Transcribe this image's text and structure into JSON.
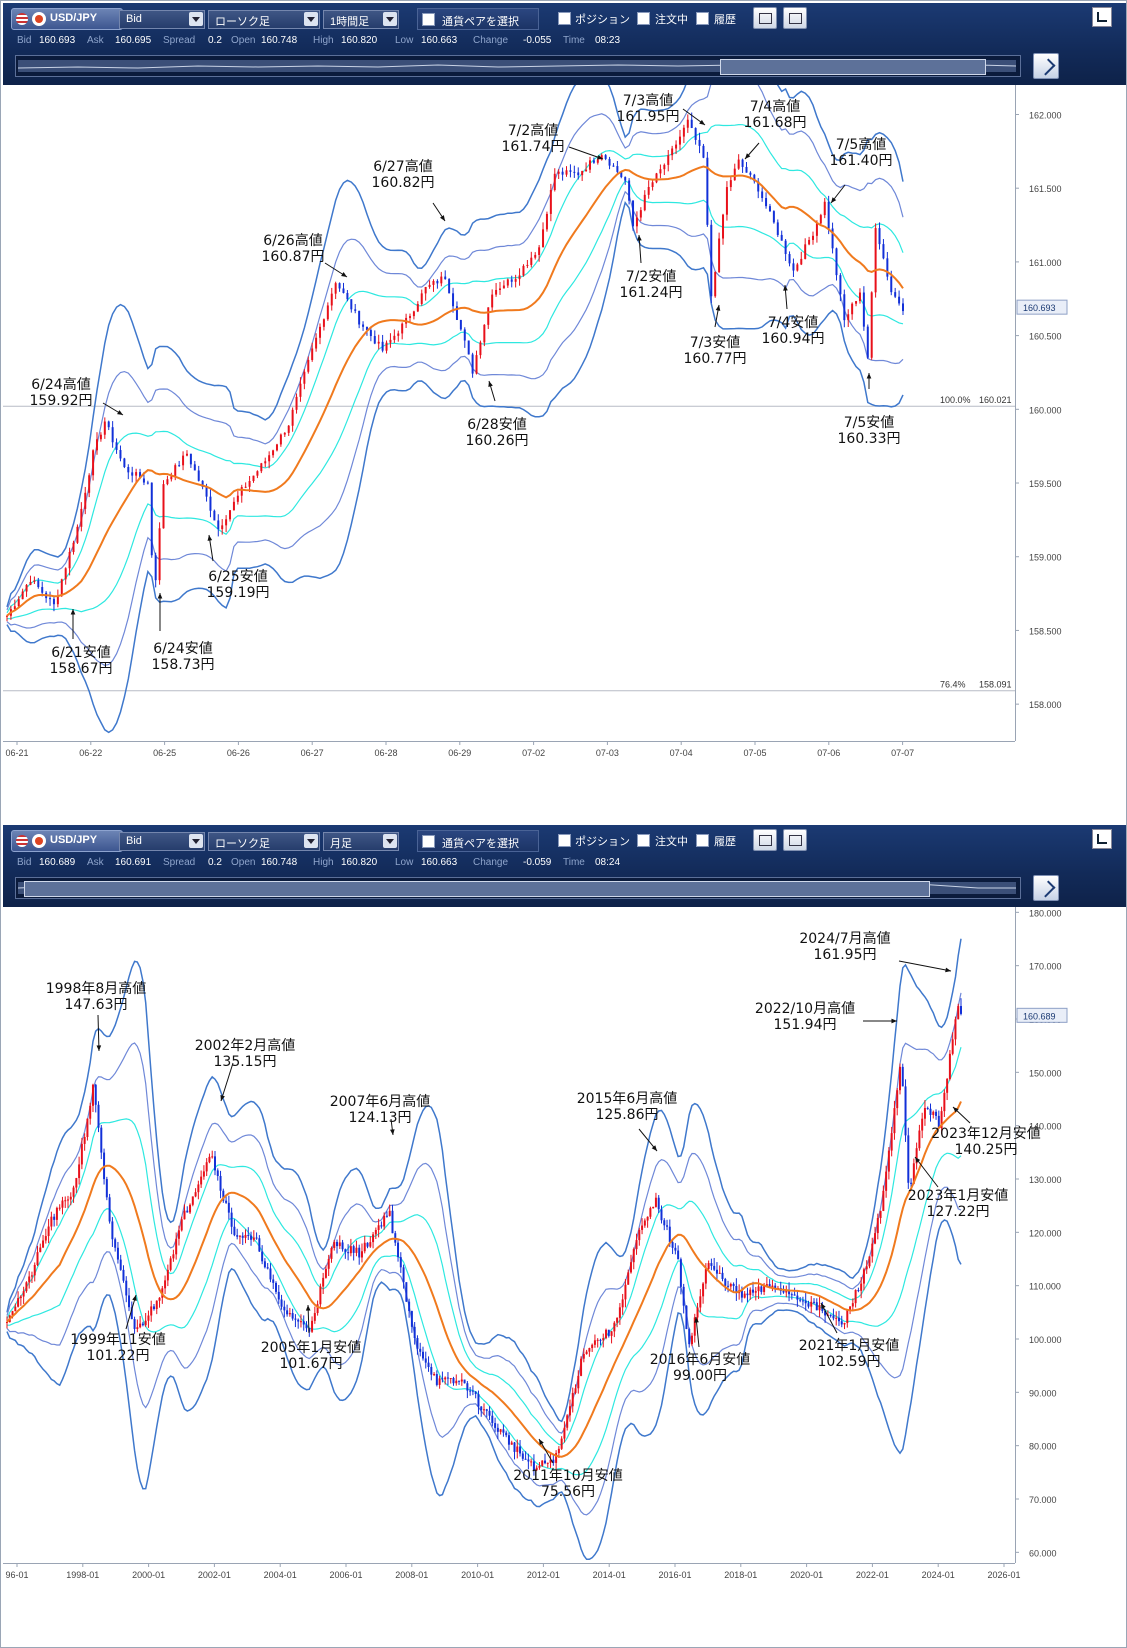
{
  "colors": {
    "up": "#e8101a",
    "down": "#1230d8",
    "ma": "#f07a1e",
    "band1": "#2ee8e0",
    "band2": "#6f88d8",
    "band3": "#3f78cc"
  },
  "panels": [
    {
      "toolbar": {
        "pair": "USD/JPY",
        "price_type": "Bid",
        "chart_type": "ローソク足",
        "timeframe": "1時間足",
        "pair_select": "通貨ペアを選択",
        "position": "ポジション",
        "orders": "注文中",
        "history": "履歴"
      },
      "quote": {
        "bid_label": "Bid",
        "bid": "160.693",
        "ask_label": "Ask",
        "ask": "160.695",
        "spread_label": "Spread",
        "spread": "0.2",
        "open_label": "Open",
        "open": "160.748",
        "high_label": "High",
        "high": "160.820",
        "low_label": "Low",
        "low": "160.663",
        "change_label": "Change",
        "change": "-0.055",
        "time_label": "Time",
        "time": "08:23"
      },
      "chart_data": {
        "type": "candlestick",
        "y_ticks": [
          "162.000",
          "161.500",
          "161.000",
          "160.500",
          "160.000",
          "159.500",
          "159.000",
          "158.500",
          "158.000"
        ],
        "ylim": [
          157.75,
          162.2
        ],
        "x_ticks": [
          "06-21",
          "06-22",
          "06-25",
          "06-26",
          "06-27",
          "06-28",
          "06-29",
          "07-02",
          "07-03",
          "07-04",
          "07-05",
          "07-06",
          "07-07"
        ],
        "current_price": "160.693",
        "fib_lines": [
          {
            "label": "100.0%",
            "value": "160.021"
          },
          {
            "label": "76.4%",
            "value": "158.091"
          }
        ],
        "series": [
          {
            "x": 0,
            "y": 158.6
          },
          {
            "x": 0.3,
            "y": 158.85
          },
          {
            "x": 0.6,
            "y": 158.67
          },
          {
            "x": 0.9,
            "y": 159.2
          },
          {
            "x": 1.1,
            "y": 159.7
          },
          {
            "x": 1.25,
            "y": 159.92
          },
          {
            "x": 1.5,
            "y": 159.6
          },
          {
            "x": 1.8,
            "y": 159.5
          },
          {
            "x": 1.88,
            "y": 158.73
          },
          {
            "x": 2.0,
            "y": 159.5
          },
          {
            "x": 2.3,
            "y": 159.7
          },
          {
            "x": 2.55,
            "y": 159.4
          },
          {
            "x": 2.7,
            "y": 159.19
          },
          {
            "x": 3.0,
            "y": 159.45
          },
          {
            "x": 3.3,
            "y": 159.65
          },
          {
            "x": 3.6,
            "y": 159.9
          },
          {
            "x": 3.9,
            "y": 160.4
          },
          {
            "x": 4.2,
            "y": 160.87
          },
          {
            "x": 4.5,
            "y": 160.6
          },
          {
            "x": 4.8,
            "y": 160.4
          },
          {
            "x": 5.1,
            "y": 160.6
          },
          {
            "x": 5.35,
            "y": 160.82
          },
          {
            "x": 5.6,
            "y": 160.9
          },
          {
            "x": 5.85,
            "y": 160.45
          },
          {
            "x": 5.95,
            "y": 160.26
          },
          {
            "x": 6.2,
            "y": 160.8
          },
          {
            "x": 6.5,
            "y": 160.9
          },
          {
            "x": 6.8,
            "y": 161.1
          },
          {
            "x": 7.0,
            "y": 161.6
          },
          {
            "x": 7.3,
            "y": 161.6
          },
          {
            "x": 7.6,
            "y": 161.74
          },
          {
            "x": 7.9,
            "y": 161.55
          },
          {
            "x": 8.0,
            "y": 161.24
          },
          {
            "x": 8.2,
            "y": 161.5
          },
          {
            "x": 8.45,
            "y": 161.7
          },
          {
            "x": 8.7,
            "y": 161.95
          },
          {
            "x": 8.9,
            "y": 161.7
          },
          {
            "x": 9.0,
            "y": 160.77
          },
          {
            "x": 9.2,
            "y": 161.5
          },
          {
            "x": 9.35,
            "y": 161.68
          },
          {
            "x": 9.6,
            "y": 161.5
          },
          {
            "x": 9.85,
            "y": 161.2
          },
          {
            "x": 10.05,
            "y": 160.94
          },
          {
            "x": 10.3,
            "y": 161.2
          },
          {
            "x": 10.45,
            "y": 161.4
          },
          {
            "x": 10.7,
            "y": 160.6
          },
          {
            "x": 10.9,
            "y": 160.8
          },
          {
            "x": 11.0,
            "y": 160.33
          },
          {
            "x": 11.1,
            "y": 161.25
          },
          {
            "x": 11.3,
            "y": 160.8
          },
          {
            "x": 11.45,
            "y": 160.69
          }
        ],
        "annotations": [
          {
            "line1": "6/24高値",
            "line2": "159.92円"
          },
          {
            "line1": "6/26高値",
            "line2": "160.87円"
          },
          {
            "line1": "6/27高値",
            "line2": "160.82円"
          },
          {
            "line1": "7/2高値",
            "line2": "161.74円"
          },
          {
            "line1": "7/3高値",
            "line2": "161.95円"
          },
          {
            "line1": "7/4高値",
            "line2": "161.68円"
          },
          {
            "line1": "7/5高値",
            "line2": "161.40円"
          },
          {
            "line1": "6/21安値",
            "line2": "158.67円"
          },
          {
            "line1": "6/24安値",
            "line2": "158.73円"
          },
          {
            "line1": "6/25安値",
            "line2": "159.19円"
          },
          {
            "line1": "6/28安値",
            "line2": "160.26円"
          },
          {
            "line1": "7/2安値",
            "line2": "161.24円"
          },
          {
            "line1": "7/3安値",
            "line2": "160.77円"
          },
          {
            "line1": "7/4安値",
            "line2": "160.94円"
          },
          {
            "line1": "7/5安値",
            "line2": "160.33円"
          }
        ]
      }
    },
    {
      "toolbar": {
        "pair": "USD/JPY",
        "price_type": "Bid",
        "chart_type": "ローソク足",
        "timeframe": "月足",
        "pair_select": "通貨ペアを選択",
        "position": "ポジション",
        "orders": "注文中",
        "history": "履歴"
      },
      "quote": {
        "bid_label": "Bid",
        "bid": "160.689",
        "ask_label": "Ask",
        "ask": "160.691",
        "spread_label": "Spread",
        "spread": "0.2",
        "open_label": "Open",
        "open": "160.748",
        "high_label": "High",
        "high": "160.820",
        "low_label": "Low",
        "low": "160.663",
        "change_label": "Change",
        "change": "-0.059",
        "time_label": "Time",
        "time": "08:24"
      },
      "chart_data": {
        "type": "candlestick",
        "y_ticks": [
          "180.000",
          "170.000",
          "160.000",
          "150.000",
          "140.000",
          "130.000",
          "120.000",
          "110.000",
          "100.000",
          "90.000",
          "80.000",
          "70.000",
          "60.000"
        ],
        "ylim": [
          58,
          181
        ],
        "x_ticks": [
          "96-01",
          "1998-01",
          "2000-01",
          "2002-01",
          "2004-01",
          "2006-01",
          "2008-01",
          "2010-01",
          "2012-01",
          "2014-01",
          "2016-01",
          "2018-01",
          "2020-01",
          "2022-01",
          "2024-01",
          "2026-01"
        ],
        "current_price": "160.689",
        "series": [
          {
            "x": 1996.0,
            "y": 104
          },
          {
            "x": 1996.6,
            "y": 110
          },
          {
            "x": 1997.3,
            "y": 122
          },
          {
            "x": 1998.0,
            "y": 128
          },
          {
            "x": 1998.6,
            "y": 147.63
          },
          {
            "x": 1999.1,
            "y": 120
          },
          {
            "x": 1999.85,
            "y": 101.22
          },
          {
            "x": 2000.5,
            "y": 107
          },
          {
            "x": 2001.3,
            "y": 123
          },
          {
            "x": 2002.1,
            "y": 135.15
          },
          {
            "x": 2002.8,
            "y": 120
          },
          {
            "x": 2003.5,
            "y": 118
          },
          {
            "x": 2004.2,
            "y": 106
          },
          {
            "x": 2005.05,
            "y": 101.67
          },
          {
            "x": 2005.8,
            "y": 118
          },
          {
            "x": 2006.6,
            "y": 116
          },
          {
            "x": 2007.45,
            "y": 124.13
          },
          {
            "x": 2008.2,
            "y": 100
          },
          {
            "x": 2008.9,
            "y": 92
          },
          {
            "x": 2009.7,
            "y": 92
          },
          {
            "x": 2010.6,
            "y": 84
          },
          {
            "x": 2011.8,
            "y": 75.56
          },
          {
            "x": 2012.5,
            "y": 78
          },
          {
            "x": 2013.3,
            "y": 98
          },
          {
            "x": 2014.2,
            "y": 102
          },
          {
            "x": 2014.9,
            "y": 119
          },
          {
            "x": 2015.45,
            "y": 125.86
          },
          {
            "x": 2016.1,
            "y": 115
          },
          {
            "x": 2016.45,
            "y": 99.0
          },
          {
            "x": 2017.0,
            "y": 114
          },
          {
            "x": 2018.0,
            "y": 108
          },
          {
            "x": 2019.0,
            "y": 110
          },
          {
            "x": 2020.0,
            "y": 107
          },
          {
            "x": 2021.05,
            "y": 102.59
          },
          {
            "x": 2021.8,
            "y": 114
          },
          {
            "x": 2022.3,
            "y": 128
          },
          {
            "x": 2022.8,
            "y": 151.94
          },
          {
            "x": 2023.05,
            "y": 127.22
          },
          {
            "x": 2023.5,
            "y": 144
          },
          {
            "x": 2023.95,
            "y": 140.25
          },
          {
            "x": 2024.5,
            "y": 161.95
          },
          {
            "x": 2024.6,
            "y": 160.69
          }
        ],
        "annotations": [
          {
            "line1": "1998年8月高値",
            "line2": "147.63円"
          },
          {
            "line1": "2002年2月高値",
            "line2": "135.15円"
          },
          {
            "line1": "2007年6月高値",
            "line2": "124.13円"
          },
          {
            "line1": "2015年6月高値",
            "line2": "125.86円"
          },
          {
            "line1": "2022/10月高値",
            "line2": "151.94円"
          },
          {
            "line1": "2024/7月高値",
            "line2": "161.95円"
          },
          {
            "line1": "1999年11安値",
            "line2": "101.22円"
          },
          {
            "line1": "2005年1月安値",
            "line2": "101.67円"
          },
          {
            "line1": "2011年10月安値",
            "line2": "75.56円"
          },
          {
            "line1": "2016年6月安値",
            "line2": "99.00円"
          },
          {
            "line1": "2021年1月安値",
            "line2": "102.59円"
          },
          {
            "line1": "2023年1月安値",
            "line2": "127.22円"
          },
          {
            "line1": "2023年12月安値",
            "line2": "140.25円"
          }
        ]
      }
    }
  ]
}
